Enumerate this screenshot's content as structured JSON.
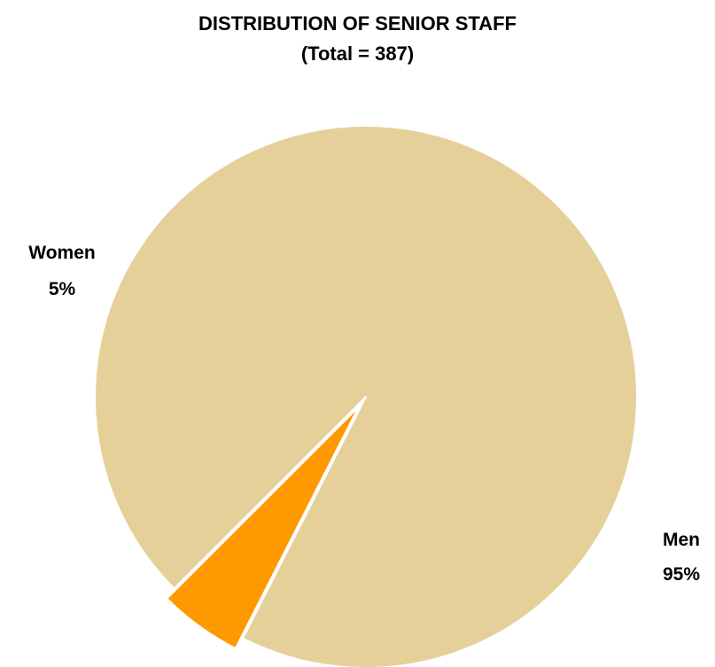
{
  "chart_data": {
    "type": "pie",
    "title": "DISTRIBUTION OF SENIOR STAFF",
    "subtitle": "(Total = 387)",
    "slices": [
      {
        "label": "Women",
        "value": 5,
        "value_label": "5%",
        "color": "#ff9900",
        "exploded": true
      },
      {
        "label": "Men",
        "value": 95,
        "value_label": "95%",
        "color": "#e6d09a",
        "exploded": false
      }
    ],
    "start_angle_deg": 225,
    "direction": "counterclockwise",
    "legend": "none",
    "label_placement": "outside"
  }
}
